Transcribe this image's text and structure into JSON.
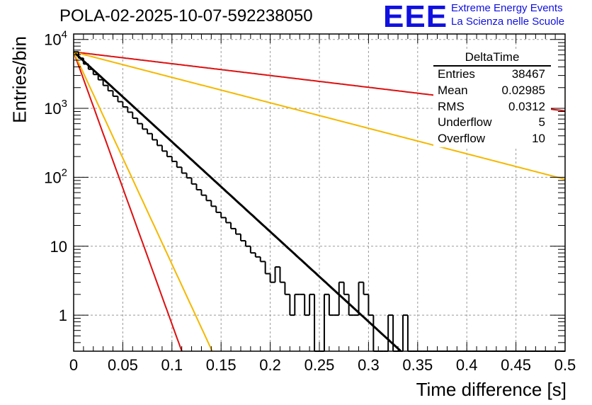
{
  "title": "POLA-02-2025-10-07-592238050",
  "logo": {
    "text": "EEE",
    "line1": "Extreme Energy Events",
    "line2": "La Scienza nelle Scuole",
    "color": "#1010e0"
  },
  "stats_box": {
    "name": "DeltaTime",
    "rows": [
      {
        "label": "Entries",
        "value": "38467"
      },
      {
        "label": "Mean",
        "value": "0.02985"
      },
      {
        "label": "RMS",
        "value": "0.0312"
      },
      {
        "label": "Underflow",
        "value": "5"
      },
      {
        "label": "Overflow",
        "value": "10"
      }
    ]
  },
  "chart_data": {
    "type": "histogram",
    "title": "POLA-02-2025-10-07-592238050",
    "xlabel": "Time difference [s]",
    "ylabel": "Entries/bin",
    "xlim": [
      0,
      0.5
    ],
    "ylim": [
      0.3,
      12000
    ],
    "yscale": "log",
    "grid": true,
    "legend_position": "top-right",
    "x_ticks": [
      "0",
      "0.05",
      "0.1",
      "0.15",
      "0.2",
      "0.25",
      "0.3",
      "0.35",
      "0.4",
      "0.45",
      "0.5"
    ],
    "y_ticks": [
      {
        "value": 1,
        "base": "1",
        "exp": ""
      },
      {
        "value": 10,
        "base": "10",
        "exp": ""
      },
      {
        "value": 100,
        "base": "10",
        "exp": "2"
      },
      {
        "value": 1000,
        "base": "10",
        "exp": "3"
      },
      {
        "value": 10000,
        "base": "10",
        "exp": "4"
      }
    ],
    "bin_width": 0.005,
    "bin_start": 0,
    "counts": [
      6600,
      5350,
      4400,
      3700,
      3100,
      2600,
      2150,
      1800,
      1500,
      1250,
      1050,
      880,
      720,
      600,
      500,
      430,
      350,
      290,
      240,
      200,
      170,
      140,
      115,
      98,
      80,
      66,
      55,
      46,
      38,
      31,
      26,
      22,
      18,
      15,
      12,
      10,
      8,
      7,
      6,
      4,
      3,
      5,
      3,
      2,
      1,
      2,
      2,
      1,
      2,
      0.2,
      0.2,
      2,
      1,
      1,
      3,
      2,
      1,
      1,
      3,
      2,
      1,
      0.2,
      0.2,
      0.2,
      1,
      0.2,
      0.2,
      1,
      0.2,
      0.2,
      0.2,
      0.2,
      0.2,
      0.2,
      0.2,
      0.2,
      0.2,
      0.2,
      0.2,
      0.2,
      0.2,
      0.2,
      0.2,
      0.2,
      0.2,
      0.2,
      0.2,
      0.2,
      0.2,
      0.2,
      0.2,
      0.2,
      0.2,
      0.2,
      0.2,
      0.2,
      0.2,
      0.2,
      0.2,
      0.2
    ],
    "fits": [
      {
        "name": "fit-main",
        "color": "#000000",
        "A": 6600,
        "tau": 0.0333
      },
      {
        "name": "fit-red-fast",
        "color": "#dd1010",
        "A": 6600,
        "tau": 0.011
      },
      {
        "name": "fit-orange-fast",
        "color": "#f5b800",
        "A": 6600,
        "tau": 0.0141
      },
      {
        "name": "fit-red-slow",
        "color": "#dd1010",
        "A": 6600,
        "tau": 0.2536
      },
      {
        "name": "fit-orange-slow",
        "color": "#f5b800",
        "A": 6600,
        "tau": 0.1175
      }
    ]
  }
}
